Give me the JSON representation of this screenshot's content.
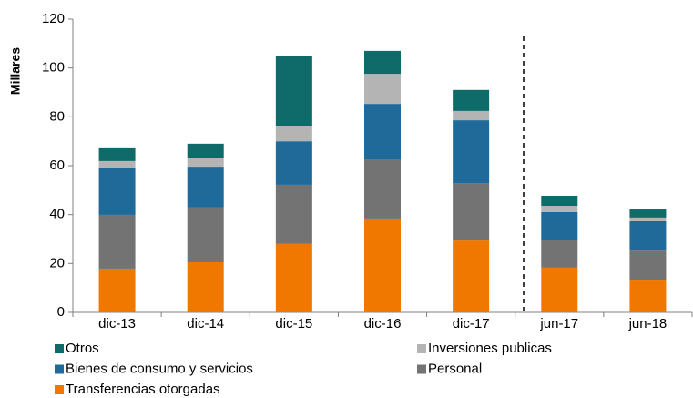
{
  "chart_data": {
    "type": "stacked_bar",
    "y_label": "Millares",
    "categories": [
      "dic-13",
      "dic-14",
      "dic-15",
      "dic-16",
      "dic-17",
      "jun-17",
      "jun-18"
    ],
    "series": [
      {
        "name": "Transferencias otorgadas",
        "color": "#f07800",
        "values": [
          17.9,
          20.5,
          28.0,
          38.4,
          29.4,
          18.3,
          13.4
        ]
      },
      {
        "name": "Personal",
        "color": "#737373",
        "values": [
          22.0,
          22.4,
          24.2,
          24.2,
          23.5,
          11.5,
          11.9
        ]
      },
      {
        "name": "Bienes de consumo y servicios",
        "color": "#1f6a98",
        "values": [
          19.0,
          16.7,
          17.8,
          22.7,
          25.7,
          11.2,
          12.0
        ]
      },
      {
        "name": "Inversiones publicas",
        "color": "#b4b4b4",
        "values": [
          3.0,
          3.4,
          6.4,
          12.3,
          3.8,
          2.6,
          1.5
        ]
      },
      {
        "name": "Otros",
        "color": "#0f6a6a",
        "values": [
          5.6,
          6.0,
          28.6,
          9.4,
          8.6,
          4.1,
          3.3
        ]
      }
    ],
    "ylim": [
      0,
      120
    ],
    "yticks": [
      0,
      20,
      40,
      60,
      80,
      100,
      120
    ],
    "grid": false
  }
}
